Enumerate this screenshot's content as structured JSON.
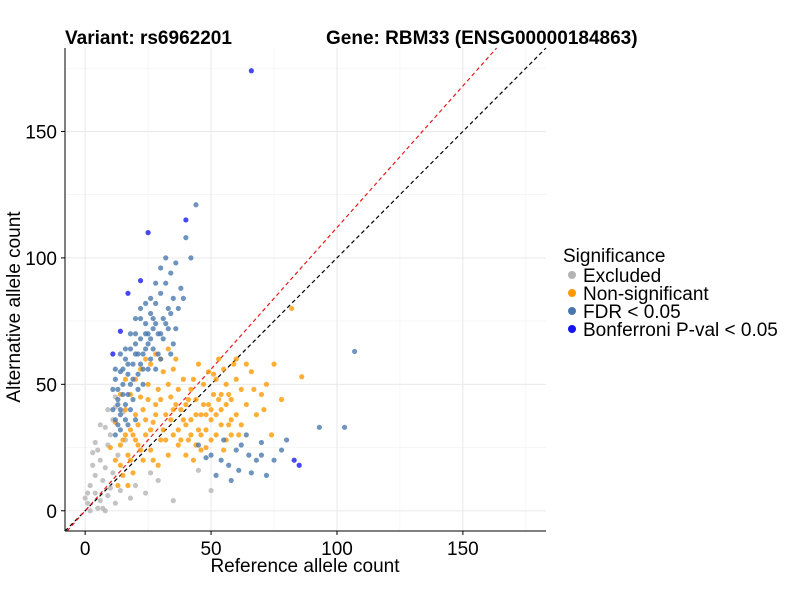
{
  "chart_data": {
    "type": "scatter",
    "title_left": "Variant: rs6962201",
    "title_right": "Gene: RBM33 (ENSG00000184863)",
    "xlabel": "Reference allele count",
    "ylabel": "Alternative allele count",
    "xlim": [
      -8,
      183
    ],
    "ylim": [
      -8,
      183
    ],
    "xticks": [
      0,
      50,
      100,
      150
    ],
    "yticks": [
      0,
      50,
      100,
      150
    ],
    "minor_grid": [
      25,
      75,
      125,
      175
    ],
    "grid": true,
    "reference_lines": [
      {
        "name": "identity",
        "slope": 1.0,
        "intercept": 0,
        "color": "#000000",
        "dashed": true
      },
      {
        "name": "expected-ratio",
        "slope": 1.12,
        "intercept": 0,
        "color": "#e41a1c",
        "dashed": true
      }
    ],
    "legend": {
      "title": "Significance",
      "placement": "right",
      "entries": [
        {
          "label": "Excluded",
          "color": "#b3b3b3"
        },
        {
          "label": "Non-significant",
          "color": "#ff9900"
        },
        {
          "label": "FDR < 0.05",
          "color": "#4777ad"
        },
        {
          "label": "Bonferroni P-val < 0.05",
          "color": "#1414f0"
        }
      ]
    },
    "series": [
      {
        "name": "Excluded",
        "color": "#b3b3b3",
        "points": [
          [
            0,
            5
          ],
          [
            1,
            3
          ],
          [
            2,
            10
          ],
          [
            3,
            18
          ],
          [
            3,
            23
          ],
          [
            4,
            7
          ],
          [
            4,
            14
          ],
          [
            5,
            24
          ],
          [
            6,
            4
          ],
          [
            6,
            20
          ],
          [
            7,
            1
          ],
          [
            7,
            12
          ],
          [
            8,
            0
          ],
          [
            8,
            17
          ],
          [
            9,
            6
          ],
          [
            9,
            26
          ],
          [
            10,
            30
          ],
          [
            10,
            9
          ],
          [
            11,
            36
          ],
          [
            11,
            15
          ],
          [
            12,
            41
          ],
          [
            12,
            3
          ],
          [
            13,
            22
          ],
          [
            14,
            8
          ],
          [
            15,
            39
          ],
          [
            16,
            28
          ],
          [
            18,
            5
          ],
          [
            20,
            10
          ],
          [
            24,
            7
          ],
          [
            26,
            15
          ],
          [
            29,
            12
          ],
          [
            35,
            4
          ],
          [
            45,
            16
          ],
          [
            50,
            8
          ],
          [
            8,
            33
          ],
          [
            9,
            40
          ],
          [
            2,
            0
          ],
          [
            5,
            1
          ],
          [
            1,
            7
          ],
          [
            4,
            27
          ],
          [
            6,
            34
          ],
          [
            12,
            45
          ]
        ]
      },
      {
        "name": "Non-significant",
        "color": "#ff9900",
        "points": [
          [
            10,
            25
          ],
          [
            12,
            35
          ],
          [
            14,
            18
          ],
          [
            15,
            28
          ],
          [
            16,
            40
          ],
          [
            17,
            22
          ],
          [
            18,
            32
          ],
          [
            19,
            15
          ],
          [
            20,
            38
          ],
          [
            21,
            26
          ],
          [
            22,
            45
          ],
          [
            23,
            20
          ],
          [
            24,
            30
          ],
          [
            25,
            50
          ],
          [
            26,
            24
          ],
          [
            27,
            35
          ],
          [
            28,
            42
          ],
          [
            29,
            18
          ],
          [
            30,
            28
          ],
          [
            31,
            55
          ],
          [
            32,
            38
          ],
          [
            33,
            22
          ],
          [
            34,
            45
          ],
          [
            35,
            30
          ],
          [
            36,
            60
          ],
          [
            37,
            26
          ],
          [
            38,
            40
          ],
          [
            39,
            52
          ],
          [
            40,
            34
          ],
          [
            41,
            28
          ],
          [
            42,
            48
          ],
          [
            43,
            20
          ],
          [
            44,
            38
          ],
          [
            45,
            58
          ],
          [
            46,
            30
          ],
          [
            47,
            42
          ],
          [
            48,
            25
          ],
          [
            49,
            55
          ],
          [
            50,
            36
          ],
          [
            51,
            46
          ],
          [
            52,
            30
          ],
          [
            53,
            60
          ],
          [
            54,
            40
          ],
          [
            55,
            24
          ],
          [
            56,
            50
          ],
          [
            57,
            34
          ],
          [
            58,
            44
          ],
          [
            59,
            58
          ],
          [
            60,
            38
          ],
          [
            61,
            30
          ],
          [
            62,
            48
          ],
          [
            64,
            42
          ],
          [
            66,
            55
          ],
          [
            68,
            38
          ],
          [
            70,
            46
          ],
          [
            72,
            50
          ],
          [
            75,
            58
          ],
          [
            78,
            44
          ],
          [
            82,
            80
          ],
          [
            86,
            53
          ],
          [
            12,
            20
          ],
          [
            14,
            26
          ],
          [
            16,
            30
          ],
          [
            18,
            20
          ],
          [
            20,
            28
          ],
          [
            22,
            24
          ],
          [
            24,
            36
          ],
          [
            26,
            32
          ],
          [
            28,
            38
          ],
          [
            30,
            44
          ],
          [
            32,
            28
          ],
          [
            34,
            36
          ],
          [
            36,
            42
          ],
          [
            38,
            28
          ],
          [
            40,
            22
          ],
          [
            42,
            36
          ],
          [
            44,
            44
          ],
          [
            46,
            24
          ],
          [
            48,
            38
          ],
          [
            50,
            28
          ],
          [
            52,
            52
          ],
          [
            54,
            34
          ],
          [
            56,
            28
          ],
          [
            58,
            36
          ],
          [
            60,
            52
          ],
          [
            62,
            34
          ],
          [
            13,
            10
          ],
          [
            15,
            14
          ],
          [
            17,
            10
          ],
          [
            19,
            30
          ],
          [
            21,
            34
          ],
          [
            23,
            40
          ],
          [
            25,
            44
          ],
          [
            27,
            20
          ],
          [
            29,
            48
          ],
          [
            31,
            32
          ],
          [
            33,
            50
          ],
          [
            35,
            40
          ],
          [
            37,
            48
          ],
          [
            39,
            36
          ],
          [
            41,
            44
          ],
          [
            43,
            52
          ],
          [
            45,
            32
          ],
          [
            47,
            50
          ],
          [
            49,
            42
          ],
          [
            51,
            54
          ],
          [
            53,
            44
          ],
          [
            55,
            56
          ],
          [
            57,
            46
          ],
          [
            60,
            60
          ],
          [
            64,
            58
          ],
          [
            67,
            48
          ],
          [
            71,
            40
          ],
          [
            74,
            30
          ],
          [
            26,
            58
          ],
          [
            28,
            62
          ],
          [
            30,
            60
          ],
          [
            33,
            64
          ],
          [
            35,
            56
          ],
          [
            37,
            32
          ],
          [
            40,
            42
          ],
          [
            42,
            30
          ],
          [
            44,
            26
          ],
          [
            46,
            38
          ],
          [
            48,
            32
          ],
          [
            50,
            40
          ],
          [
            52,
            38
          ],
          [
            54,
            46
          ],
          [
            56,
            42
          ],
          [
            58,
            30
          ],
          [
            20,
            52
          ],
          [
            18,
            46
          ],
          [
            22,
            56
          ],
          [
            24,
            60
          ],
          [
            14,
            46
          ],
          [
            16,
            52
          ]
        ]
      },
      {
        "name": "FDR < 0.05",
        "color": "#4777ad",
        "points": [
          [
            11,
            48
          ],
          [
            12,
            52
          ],
          [
            13,
            44
          ],
          [
            14,
            55
          ],
          [
            15,
            50
          ],
          [
            16,
            60
          ],
          [
            17,
            46
          ],
          [
            18,
            64
          ],
          [
            19,
            58
          ],
          [
            20,
            70
          ],
          [
            21,
            54
          ],
          [
            22,
            68
          ],
          [
            23,
            62
          ],
          [
            24,
            74
          ],
          [
            25,
            66
          ],
          [
            26,
            78
          ],
          [
            27,
            72
          ],
          [
            28,
            82
          ],
          [
            29,
            70
          ],
          [
            30,
            86
          ],
          [
            31,
            76
          ],
          [
            32,
            90
          ],
          [
            33,
            80
          ],
          [
            34,
            94
          ],
          [
            35,
            84
          ],
          [
            36,
            98
          ],
          [
            38,
            88
          ],
          [
            40,
            108
          ],
          [
            42,
            100
          ],
          [
            44,
            121
          ],
          [
            11,
            40
          ],
          [
            12,
            36
          ],
          [
            13,
            42
          ],
          [
            14,
            38
          ],
          [
            15,
            46
          ],
          [
            16,
            42
          ],
          [
            17,
            54
          ],
          [
            18,
            50
          ],
          [
            19,
            44
          ],
          [
            20,
            62
          ],
          [
            21,
            48
          ],
          [
            22,
            58
          ],
          [
            23,
            56
          ],
          [
            24,
            64
          ],
          [
            25,
            70
          ],
          [
            26,
            68
          ],
          [
            27,
            76
          ],
          [
            28,
            74
          ],
          [
            30,
            70
          ],
          [
            32,
            74
          ],
          [
            34,
            78
          ],
          [
            36,
            72
          ],
          [
            19,
            52
          ],
          [
            21,
            62
          ],
          [
            23,
            50
          ],
          [
            25,
            56
          ],
          [
            27,
            64
          ],
          [
            29,
            62
          ],
          [
            31,
            68
          ],
          [
            33,
            72
          ],
          [
            35,
            66
          ],
          [
            37,
            80
          ],
          [
            39,
            84
          ],
          [
            18,
            40
          ],
          [
            16,
            36
          ],
          [
            14,
            40
          ],
          [
            13,
            48
          ],
          [
            15,
            56
          ],
          [
            17,
            58
          ],
          [
            20,
            66
          ],
          [
            22,
            76
          ],
          [
            24,
            82
          ],
          [
            26,
            84
          ],
          [
            28,
            90
          ],
          [
            30,
            96
          ],
          [
            32,
            100
          ],
          [
            12,
            56
          ],
          [
            14,
            62
          ],
          [
            16,
            64
          ],
          [
            18,
            70
          ],
          [
            20,
            76
          ],
          [
            22,
            80
          ],
          [
            24,
            70
          ],
          [
            26,
            60
          ],
          [
            28,
            56
          ],
          [
            45,
            26
          ],
          [
            48,
            21
          ],
          [
            50,
            22
          ],
          [
            52,
            14
          ],
          [
            55,
            28
          ],
          [
            57,
            18
          ],
          [
            60,
            24
          ],
          [
            62,
            26
          ],
          [
            65,
            22
          ],
          [
            68,
            20
          ],
          [
            70,
            22
          ],
          [
            72,
            14
          ],
          [
            75,
            20
          ],
          [
            78,
            24
          ],
          [
            80,
            28
          ],
          [
            58,
            12
          ],
          [
            107,
            63
          ],
          [
            93,
            33
          ],
          [
            103,
            33
          ],
          [
            66,
            15
          ],
          [
            54,
            20
          ],
          [
            61,
            16
          ],
          [
            70,
            27
          ],
          [
            64,
            30
          ],
          [
            30,
            60
          ],
          [
            34,
            62
          ],
          [
            12,
            30
          ],
          [
            13,
            34
          ],
          [
            14,
            32
          ],
          [
            17,
            34
          ],
          [
            20,
            36
          ]
        ]
      },
      {
        "name": "Bonferroni P-val < 0.05",
        "color": "#1414f0",
        "points": [
          [
            66,
            174
          ],
          [
            40,
            115
          ],
          [
            25,
            110
          ],
          [
            22,
            91
          ],
          [
            17,
            86
          ],
          [
            14,
            71
          ],
          [
            11,
            62
          ],
          [
            83,
            20
          ],
          [
            85,
            18
          ]
        ]
      }
    ]
  }
}
